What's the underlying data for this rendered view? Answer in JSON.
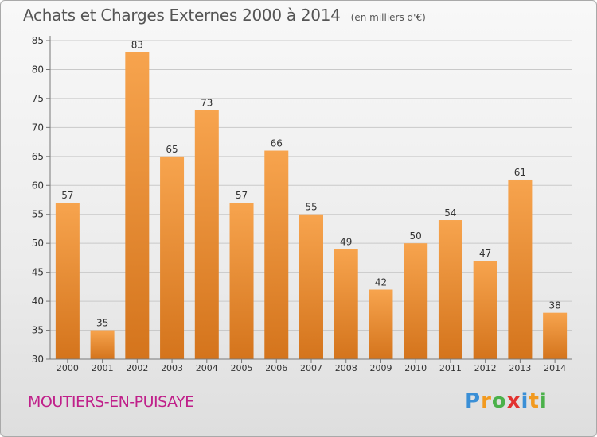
{
  "header": {
    "title": "Achats et Charges Externes 2000 à 2014",
    "unit": "(en milliers d'€)"
  },
  "commune": "MOUTIERS-EN-PUISAYE",
  "logo": {
    "letters": [
      "P",
      "r",
      "o",
      "x",
      "i",
      "t",
      "i"
    ],
    "colors": [
      "#3a8fd6",
      "#f29a1f",
      "#4bb14a",
      "#e2312f",
      "#3a8fd6",
      "#f29a1f",
      "#4bb14a"
    ]
  },
  "colors": {
    "bar_top": "#f7a44e",
    "bar_bottom": "#d4741c",
    "grid": "#c9c9c9",
    "axis": "#777777",
    "text": "#333333"
  },
  "chart_data": {
    "type": "bar",
    "categories": [
      "2000",
      "2001",
      "2002",
      "2003",
      "2004",
      "2005",
      "2006",
      "2007",
      "2008",
      "2009",
      "2010",
      "2011",
      "2012",
      "2013",
      "2014"
    ],
    "values": [
      57,
      35,
      83,
      65,
      73,
      57,
      66,
      55,
      49,
      42,
      50,
      54,
      47,
      61,
      38
    ],
    "ylim": [
      30,
      85
    ],
    "yticks": [
      30,
      35,
      40,
      45,
      50,
      55,
      60,
      65,
      70,
      75,
      80,
      85
    ],
    "grid": true
  }
}
